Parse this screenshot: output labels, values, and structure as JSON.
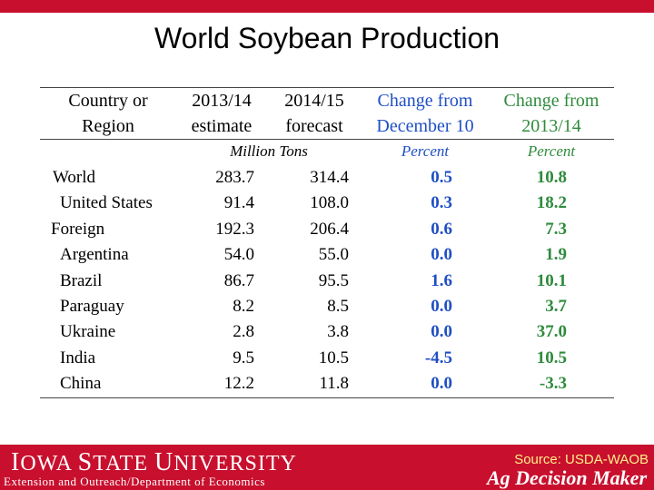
{
  "title": "World Soybean Production",
  "columns": {
    "c1": [
      "Country or",
      "Region"
    ],
    "c2": [
      "2013/14",
      "estimate"
    ],
    "c3": [
      "2014/15",
      "forecast"
    ],
    "c4": [
      "Change from",
      "December 10"
    ],
    "c5": [
      "Change from",
      "2013/14"
    ]
  },
  "units": {
    "tons": "Million Tons",
    "pct1": "Percent",
    "pct2": "Percent"
  },
  "rows": [
    {
      "region": "World",
      "estimate": "283.7",
      "forecast": "314.4",
      "change_dec": "0.5",
      "change_prev": "10.8"
    },
    {
      "region": "United States",
      "estimate": "91.4",
      "forecast": "108.0",
      "change_dec": "0.3",
      "change_prev": "18.2"
    },
    {
      "region": "Foreign",
      "estimate": "192.3",
      "forecast": "206.4",
      "change_dec": "0.6",
      "change_prev": "7.3"
    },
    {
      "region": "Argentina",
      "estimate": "54.0",
      "forecast": "55.0",
      "change_dec": "0.0",
      "change_prev": "1.9"
    },
    {
      "region": "Brazil",
      "estimate": "86.7",
      "forecast": "95.5",
      "change_dec": "1.6",
      "change_prev": "10.1"
    },
    {
      "region": "Paraguay",
      "estimate": "8.2",
      "forecast": "8.5",
      "change_dec": "0.0",
      "change_prev": "3.7"
    },
    {
      "region": "Ukraine",
      "estimate": "2.8",
      "forecast": "3.8",
      "change_dec": "0.0",
      "change_prev": "37.0"
    },
    {
      "region": "India",
      "estimate": "9.5",
      "forecast": "10.5",
      "change_dec": "-4.5",
      "change_prev": "10.5"
    },
    {
      "region": "China",
      "estimate": "12.2",
      "forecast": "11.8",
      "change_dec": "0.0",
      "change_prev": "-3.3"
    }
  ],
  "footer": {
    "university_a": "I",
    "university_b": "OWA ",
    "university_c": "S",
    "university_d": "TATE ",
    "university_e": "U",
    "university_f": "NIVERSITY",
    "department": "Extension and Outreach/Department of Economics",
    "source": "Source: USDA-WAOB",
    "brand": "Ag Decision Maker"
  },
  "colors": {
    "red": "#c8102e",
    "blue": "#1f4fc4",
    "green": "#2e8b3c"
  }
}
